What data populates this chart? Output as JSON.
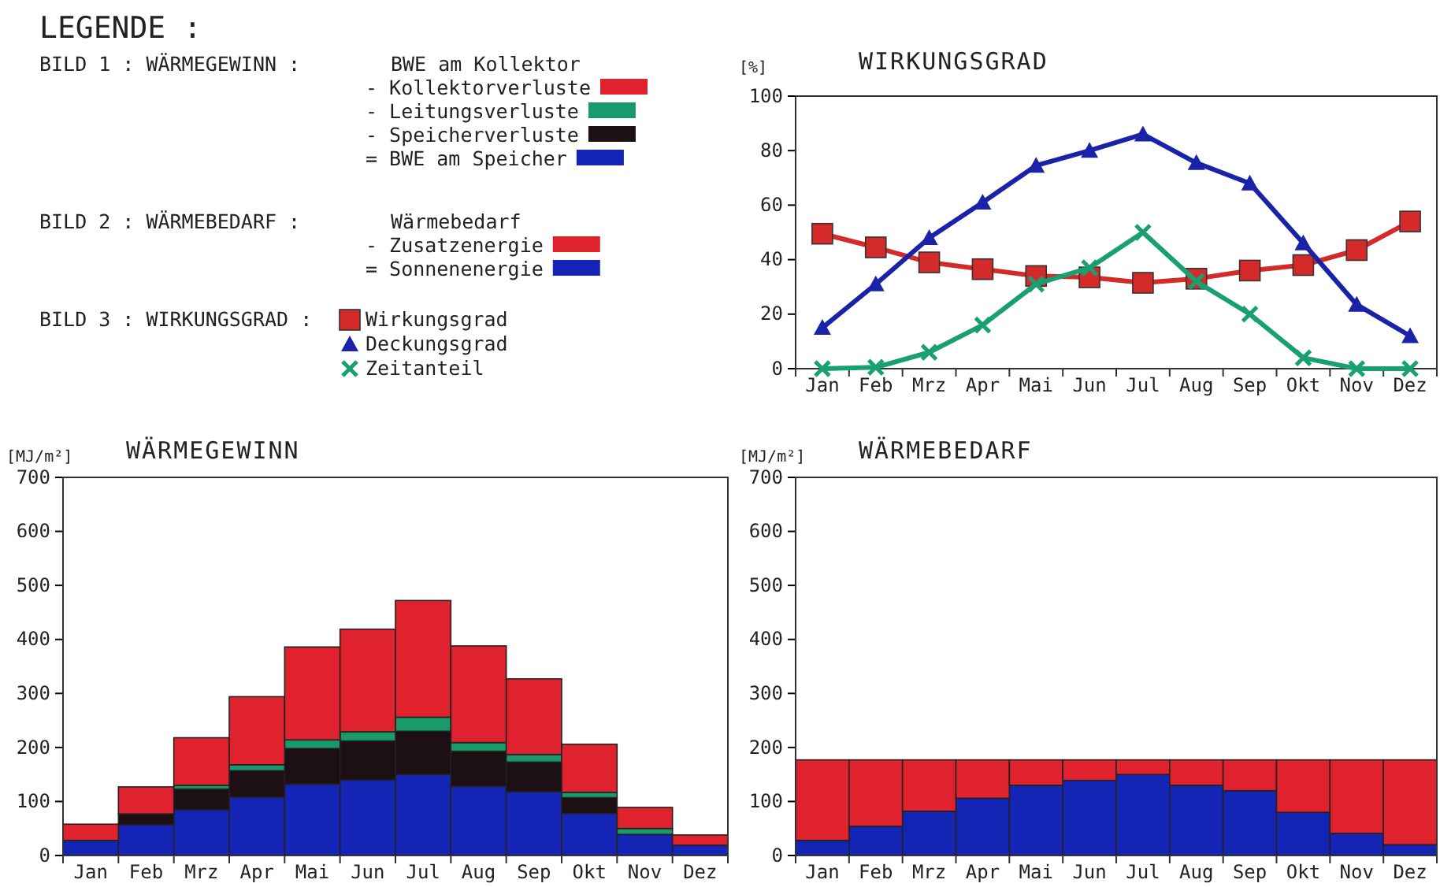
{
  "chart_data": [
    {
      "type": "other",
      "title": "LEGENDE :"
    },
    {
      "type": "line",
      "title": "WIRKUNGSGRAD",
      "ylabel": "[%]",
      "legend_title": "BILD 3 : WIRKUNGSGRAD :",
      "legend": "left",
      "categories": [
        "Jan",
        "Feb",
        "Mrz",
        "Apr",
        "Mai",
        "Jun",
        "Jul",
        "Aug",
        "Sep",
        "Okt",
        "Nov",
        "Dez"
      ],
      "ylim": [
        0,
        100
      ],
      "yticks": [
        0,
        20,
        40,
        60,
        80,
        100
      ],
      "grid": false,
      "series": [
        {
          "name": "Wirkungsgrad",
          "color": "#d42a2a",
          "marker": "square",
          "values": [
            49.5,
            44.5,
            39,
            36.5,
            34,
            33.5,
            31.5,
            33,
            36,
            38,
            43.5,
            54
          ]
        },
        {
          "name": "Deckungsgrad",
          "color": "#1a22a8",
          "marker": "triangle",
          "values": [
            15,
            31,
            48,
            61,
            74.5,
            80,
            86,
            75.5,
            68,
            46,
            23.5,
            12
          ]
        },
        {
          "name": "Zeitanteil",
          "color": "#18a070",
          "marker": "cross",
          "values": [
            0,
            0.5,
            6,
            16,
            31,
            37,
            50,
            32,
            20,
            4,
            0,
            0
          ]
        }
      ]
    },
    {
      "type": "bar",
      "stacked": true,
      "title": "WÄRMEGEWINN",
      "ylabel": "[MJ/m²]",
      "legend_title": "BILD 1 : WÄRMEGEWINN :",
      "legend": "top",
      "annotations": [
        "BWE am Kollektor"
      ],
      "categories": [
        "Jan",
        "Feb",
        "Mrz",
        "Apr",
        "Mai",
        "Jun",
        "Jul",
        "Aug",
        "Sep",
        "Okt",
        "Nov",
        "Dez"
      ],
      "ylim": [
        0,
        700
      ],
      "yticks": [
        0,
        100,
        200,
        300,
        400,
        500,
        600,
        700
      ],
      "grid": false,
      "series": [
        {
          "name": "= BWE am Speicher",
          "color": "#1424b4",
          "values": [
            28,
            57,
            85,
            108,
            132,
            140,
            150,
            128,
            118,
            78,
            39,
            19
          ]
        },
        {
          "name": "- Speicherverluste",
          "color": "#1c1014",
          "values": [
            0,
            20,
            38,
            49,
            66,
            72,
            80,
            65,
            55,
            29,
            0,
            0
          ]
        },
        {
          "name": "- Leitungsverluste",
          "color": "#1a9a6a",
          "values": [
            0,
            0,
            7,
            11,
            16,
            17,
            26,
            16,
            14,
            10,
            11,
            0
          ]
        },
        {
          "name": "- Kollektorverluste",
          "color": "#e0222e",
          "values": [
            30,
            50,
            88,
            126,
            172,
            190,
            216,
            179,
            140,
            89,
            39,
            19
          ]
        }
      ]
    },
    {
      "type": "bar",
      "stacked": true,
      "title": "WÄRMEBEDARF",
      "ylabel": "[MJ/m²]",
      "legend_title": "BILD 2 : WÄRMEBEDARF :",
      "legend": "top",
      "annotations": [
        "Wärmebedarf"
      ],
      "categories": [
        "Jan",
        "Feb",
        "Mrz",
        "Apr",
        "Mai",
        "Jun",
        "Jul",
        "Aug",
        "Sep",
        "Okt",
        "Nov",
        "Dez"
      ],
      "ylim": [
        0,
        700
      ],
      "yticks": [
        0,
        100,
        200,
        300,
        400,
        500,
        600,
        700
      ],
      "grid": false,
      "series": [
        {
          "name": "= Sonnenenergie",
          "color": "#1424b4",
          "values": [
            28,
            54,
            82,
            106,
            130,
            139,
            150,
            130,
            120,
            80,
            41,
            20
          ]
        },
        {
          "name": "- Zusatzenergie",
          "color": "#e0222e",
          "values": [
            149,
            123,
            95,
            71,
            47,
            38,
            27,
            47,
            57,
            97,
            136,
            157
          ]
        }
      ]
    }
  ]
}
